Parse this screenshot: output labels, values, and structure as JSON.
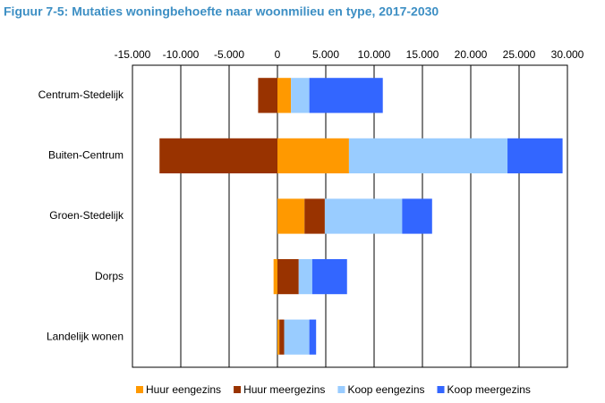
{
  "chart_data": {
    "type": "stacked-barh",
    "title": "Figuur 7-5: Mutaties woningbehoefte naar woonmilieu en type, 2017-2030",
    "categories": [
      "Centrum-Stedelijk",
      "Buiten-Centrum",
      "Groen-Stedelijk",
      "Dorps",
      "Landelijk wonen"
    ],
    "series": [
      {
        "name": "Huur eengezins",
        "color": "#ff9900",
        "values": [
          1400,
          7400,
          2800,
          -400,
          200
        ]
      },
      {
        "name": "Huur meergezins",
        "color": "#993300",
        "values": [
          -2000,
          -12200,
          2100,
          2200,
          500
        ]
      },
      {
        "name": "Koop eengezins",
        "color": "#99ccff",
        "values": [
          1900,
          16400,
          8000,
          1400,
          2600
        ]
      },
      {
        "name": "Koop meergezins",
        "color": "#3366ff",
        "values": [
          7600,
          5700,
          3100,
          3600,
          700
        ]
      }
    ],
    "xlim": [
      -15000,
      30000
    ],
    "xticks": [
      {
        "value": -15000,
        "label": "-15.000"
      },
      {
        "value": -10000,
        "label": "-10.000"
      },
      {
        "value": -5000,
        "label": "-5.000"
      },
      0,
      {
        "value": 5000,
        "label": "5.000"
      },
      {
        "value": 10000,
        "label": "10.000"
      },
      {
        "value": 15000,
        "label": "15.000"
      },
      {
        "value": 20000,
        "label": "20.000"
      },
      {
        "value": 25000,
        "label": "25.000"
      },
      {
        "value": 30000,
        "label": "30.000"
      }
    ],
    "grid": true,
    "legend": "bottom"
  }
}
